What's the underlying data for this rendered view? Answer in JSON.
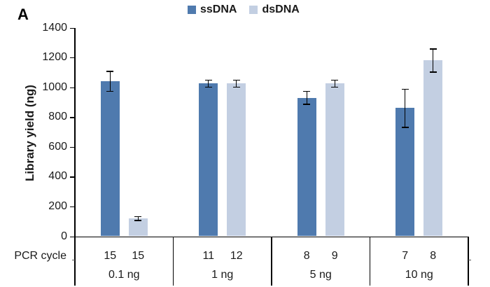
{
  "chart_data": {
    "type": "bar",
    "panel_label": "A",
    "ylabel": "Library yield (ng)",
    "xlabel": "",
    "x_row_label": "PCR cycle",
    "ylim": [
      0,
      1400
    ],
    "yticks": [
      0,
      200,
      400,
      600,
      800,
      1000,
      1200,
      1400
    ],
    "categories": [
      "0.1 ng",
      "1 ng",
      "5 ng",
      "10 ng"
    ],
    "legend_position": "top-center",
    "grid": "off",
    "series": [
      {
        "name": "ssDNA",
        "color": "#4f7aae",
        "values": [
          1040,
          1025,
          930,
          860
        ],
        "errors": [
          70,
          25,
          45,
          130
        ],
        "pcr_cycles": [
          15,
          11,
          8,
          7
        ]
      },
      {
        "name": "dsDNA",
        "color": "#c3cfe2",
        "values": [
          120,
          1025,
          1025,
          1180
        ],
        "errors": [
          15,
          25,
          25,
          80
        ],
        "pcr_cycles": [
          15,
          12,
          9,
          8
        ]
      }
    ]
  }
}
